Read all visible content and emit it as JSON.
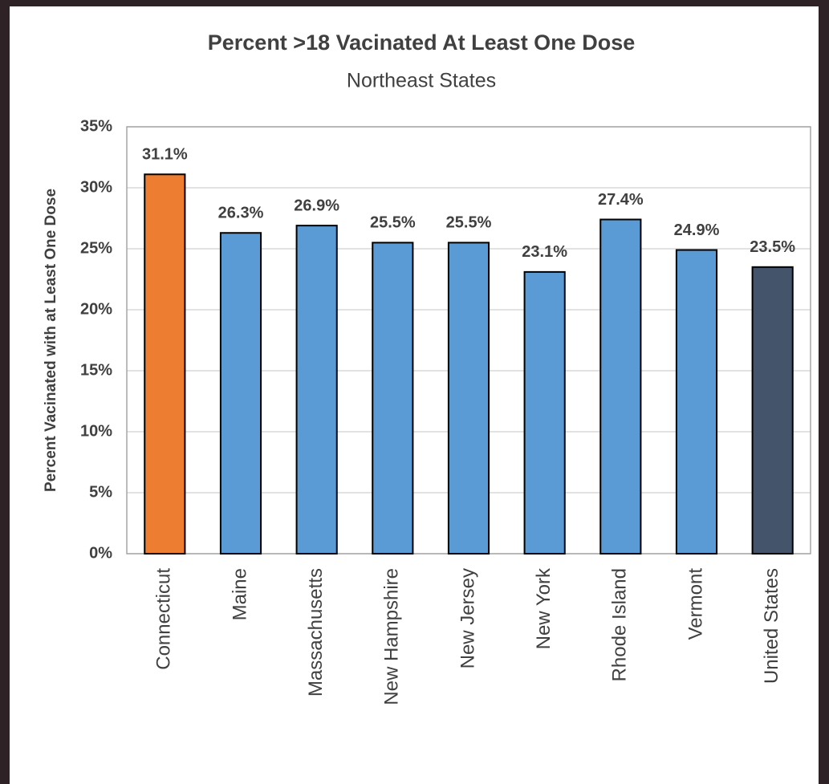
{
  "chart_data": {
    "type": "bar",
    "title": "Percent >18 Vacinated At Least One Dose",
    "subtitle": "Northeast States",
    "y_label": "Percent Vacinated with at Least One Dose",
    "categories": [
      "Connecticut",
      "Maine",
      "Massachusetts",
      "New Hampshire",
      "New Jersey",
      "New York",
      "Rhode Island",
      "Vermont",
      "United States"
    ],
    "values": [
      31.1,
      26.3,
      26.9,
      25.5,
      25.5,
      23.1,
      27.4,
      24.9,
      23.5
    ],
    "value_labels": [
      "31.1%",
      "26.3%",
      "26.9%",
      "25.5%",
      "25.5%",
      "23.1%",
      "27.4%",
      "24.9%",
      "23.5%"
    ],
    "colors": [
      "#ed7d31",
      "#5b9bd5",
      "#5b9bd5",
      "#5b9bd5",
      "#5b9bd5",
      "#5b9bd5",
      "#5b9bd5",
      "#5b9bd5",
      "#44546a"
    ],
    "ylim": [
      0,
      35
    ],
    "yticks": [
      {
        "value": 0,
        "label": "0%"
      },
      {
        "value": 5,
        "label": "5%"
      },
      {
        "value": 10,
        "label": "10%"
      },
      {
        "value": 15,
        "label": "15%"
      },
      {
        "value": 20,
        "label": "20%"
      },
      {
        "value": 25,
        "label": "25%"
      },
      {
        "value": 30,
        "label": "30%"
      },
      {
        "value": 35,
        "label": "35%"
      }
    ],
    "grid": true
  }
}
